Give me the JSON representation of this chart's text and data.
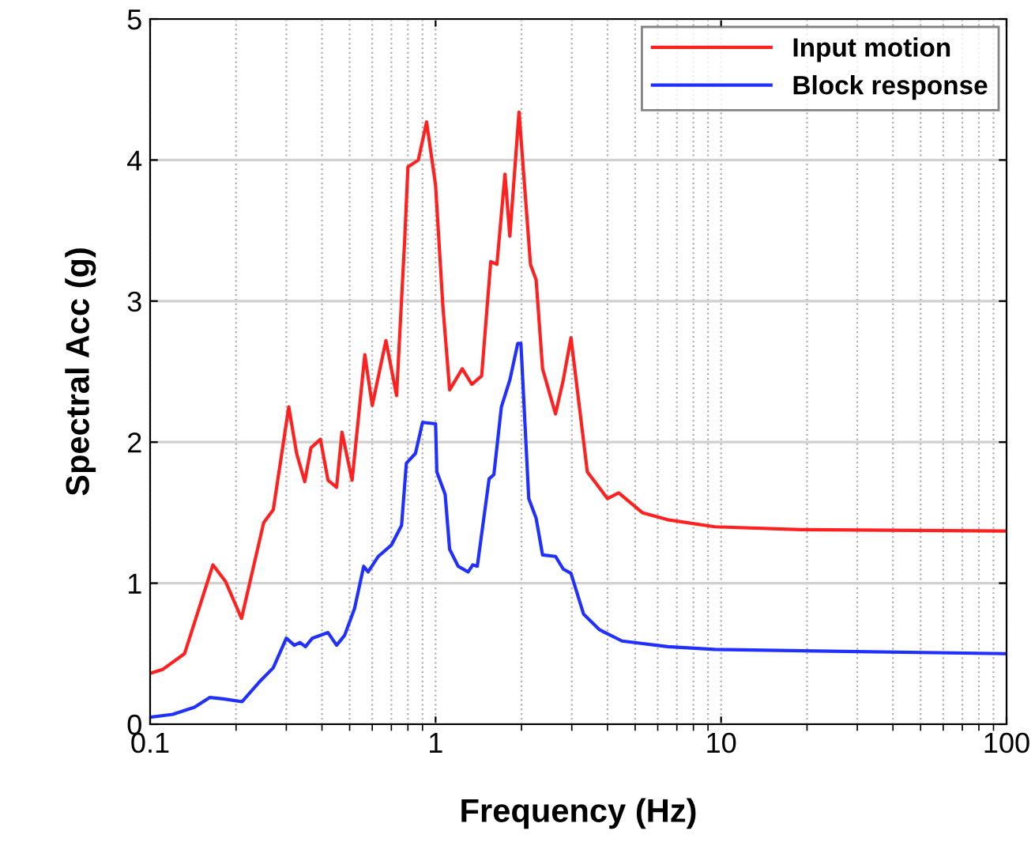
{
  "chart_data": {
    "type": "line",
    "xlabel": "Frequency (Hz)",
    "ylabel": "Spectral Acc (g)",
    "log": "x",
    "xlim": [
      0.1,
      100
    ],
    "xticks": [
      0.1,
      1,
      10,
      100
    ],
    "ylim": [
      0,
      5
    ],
    "yticks": [
      0,
      1,
      2,
      3,
      4,
      5
    ],
    "grid": true,
    "legend": "top right",
    "marker": "none",
    "line_style": "solid",
    "series": [
      {
        "name": "Input motion",
        "color": "#ff2020",
        "x": [
          0.1,
          0.111,
          0.132,
          0.166,
          0.184,
          0.209,
          0.25,
          0.27,
          0.306,
          0.326,
          0.348,
          0.366,
          0.395,
          0.42,
          0.45,
          0.47,
          0.51,
          0.565,
          0.6,
          0.67,
          0.73,
          0.78,
          0.8,
          0.87,
          0.93,
          1.0,
          1.06,
          1.12,
          1.24,
          1.34,
          1.45,
          1.56,
          1.64,
          1.75,
          1.82,
          1.96,
          2.15,
          2.25,
          2.37,
          2.63,
          2.8,
          2.98,
          3.4,
          4.0,
          4.38,
          5.3,
          6.5,
          9.5,
          19,
          100
        ],
        "values": [
          0.36,
          0.39,
          0.5,
          1.13,
          1.01,
          0.75,
          1.43,
          1.52,
          2.25,
          1.92,
          1.72,
          1.96,
          2.02,
          1.73,
          1.68,
          2.07,
          1.73,
          2.62,
          2.26,
          2.72,
          2.33,
          3.45,
          3.95,
          4.0,
          4.27,
          3.82,
          2.97,
          2.37,
          2.52,
          2.41,
          2.47,
          3.28,
          3.26,
          3.9,
          3.46,
          4.34,
          3.26,
          3.15,
          2.52,
          2.2,
          2.44,
          2.74,
          1.79,
          1.6,
          1.64,
          1.5,
          1.45,
          1.4,
          1.38,
          1.37
        ]
      },
      {
        "name": "Block response",
        "color": "#2030ff",
        "x": [
          0.1,
          0.12,
          0.143,
          0.162,
          0.18,
          0.21,
          0.244,
          0.27,
          0.3,
          0.32,
          0.335,
          0.35,
          0.37,
          0.42,
          0.45,
          0.48,
          0.52,
          0.56,
          0.58,
          0.63,
          0.7,
          0.76,
          0.79,
          0.85,
          0.9,
          1.0,
          1.01,
          1.08,
          1.12,
          1.2,
          1.3,
          1.35,
          1.4,
          1.54,
          1.6,
          1.7,
          1.82,
          1.94,
          1.99,
          2.12,
          2.25,
          2.37,
          2.63,
          2.8,
          2.98,
          3.3,
          3.75,
          4.5,
          6.5,
          9.5,
          100
        ],
        "values": [
          0.05,
          0.07,
          0.12,
          0.19,
          0.18,
          0.16,
          0.31,
          0.4,
          0.61,
          0.56,
          0.58,
          0.55,
          0.61,
          0.65,
          0.56,
          0.63,
          0.82,
          1.12,
          1.08,
          1.19,
          1.27,
          1.41,
          1.85,
          1.92,
          2.14,
          2.13,
          1.79,
          1.63,
          1.24,
          1.12,
          1.08,
          1.13,
          1.12,
          1.74,
          1.77,
          2.25,
          2.44,
          2.7,
          2.7,
          1.6,
          1.46,
          1.2,
          1.19,
          1.1,
          1.07,
          0.78,
          0.67,
          0.59,
          0.55,
          0.53,
          0.5
        ]
      }
    ]
  }
}
